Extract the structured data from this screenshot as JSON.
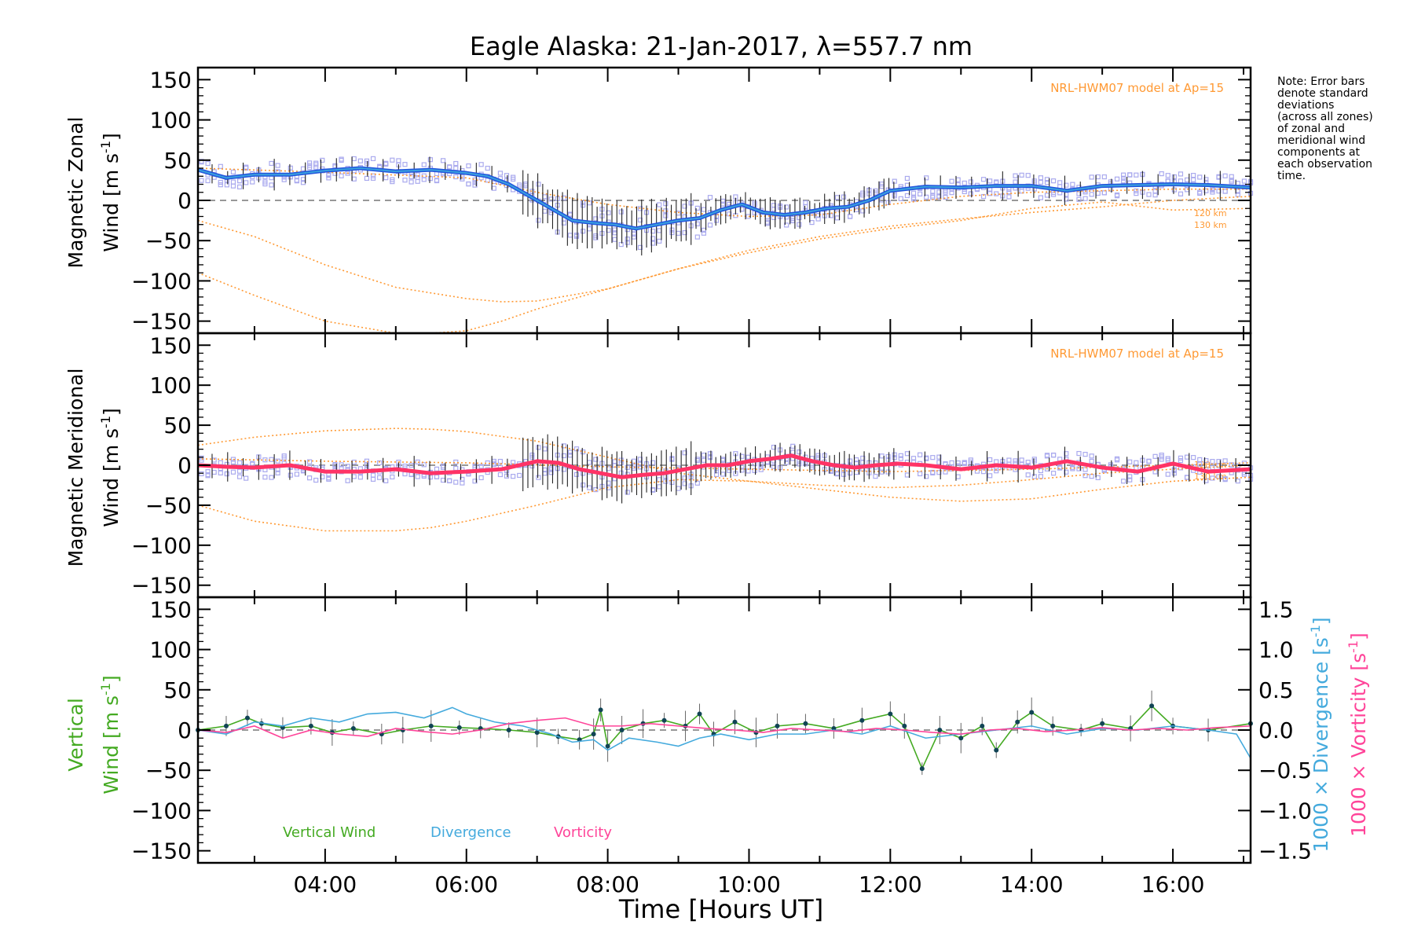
{
  "chart_data": {
    "title": "Eagle Alaska: 21-Jan-2017, λ=557.7 nm",
    "note": [
      "Note: Error bars",
      "denote standard",
      "deviations",
      "(across all zones)",
      "of zonal and",
      "meridional wind",
      "components at",
      "each observation",
      "time."
    ],
    "x": {
      "label": "Time [Hours UT]",
      "range": [
        2.2,
        17.1
      ],
      "tick_values": [
        4,
        6,
        8,
        10,
        12,
        14,
        16
      ],
      "tick_labels": [
        "04:00",
        "06:00",
        "08:00",
        "10:00",
        "12:00",
        "14:00",
        "16:00"
      ]
    },
    "colors": {
      "zonal": "#2255dd",
      "zonal_light": "#3aa0dd",
      "meridional": "#ff3366",
      "model": "#ff9933",
      "samples": "#aaaaee",
      "vertical": "#44aa22",
      "divergence": "#44aadd",
      "vorticity": "#ff4499",
      "dashed": "#777777"
    },
    "panels": [
      {
        "type": "line",
        "ylabel_line1": "Magnetic Zonal",
        "ylabel_line2": "Wind [m s",
        "ylabel_sup": "-1",
        "ylabel_end": "]",
        "ylim": [
          -165,
          165
        ],
        "yticks": [
          -150,
          -100,
          -50,
          0,
          50,
          100,
          150
        ],
        "model_label": "NRL-HWM07 model at Ap=15",
        "altitude_labels": [
          "120 km",
          "130 km"
        ],
        "series": [
          {
            "x": [
              2.2,
              2.6,
              3.0,
              3.5,
              4.0,
              4.5,
              5.0,
              5.5,
              6.0,
              6.3,
              6.6,
              6.9,
              7.2,
              7.5,
              7.8,
              8.1,
              8.4,
              8.7,
              9.0,
              9.3,
              9.6,
              9.9,
              10.2,
              10.5,
              10.8,
              11.1,
              11.4,
              11.7,
              12.0,
              12.5,
              13.0,
              13.5,
              14.0,
              14.5,
              15.0,
              15.5,
              16.0,
              16.5,
              17.1
            ],
            "y": [
              38,
              28,
              32,
              32,
              37,
              40,
              36,
              38,
              34,
              30,
              20,
              5,
              -10,
              -25,
              -28,
              -30,
              -35,
              -30,
              -25,
              -22,
              -12,
              -5,
              -15,
              -18,
              -15,
              -10,
              -8,
              0,
              12,
              17,
              16,
              18,
              18,
              12,
              18,
              19,
              20,
              19,
              16
            ]
          }
        ],
        "model": [
          {
            "x": [
              2.2,
              3.0,
              4.0,
              5.0,
              6.0,
              6.5,
              7.0,
              8.0,
              9.0,
              10.0,
              11.0,
              12.0,
              13.0,
              14.0,
              15.0,
              16.0,
              17.1
            ],
            "y": [
              -25,
              -45,
              -80,
              -108,
              -122,
              -126,
              -125,
              -110,
              -85,
              -62,
              -45,
              -32,
              -23,
              -15,
              -8,
              0,
              5
            ]
          },
          {
            "x": [
              2.2,
              3.0,
              4.0,
              5.0,
              5.5,
              6.0,
              6.5,
              7.0,
              8.0,
              9.0,
              10.0,
              11.0,
              12.0,
              13.0,
              14.0,
              15.0,
              16.0,
              17.1
            ],
            "y": [
              -90,
              -118,
              -150,
              -165,
              -165,
              -162,
              -150,
              -135,
              -110,
              -85,
              -65,
              -48,
              -35,
              -25,
              -10,
              -2,
              -12,
              -10
            ]
          },
          {
            "x": [
              2.2,
              4.0,
              6.0,
              7.0,
              8.0,
              9.0,
              10.0,
              11.0,
              12.0,
              13.0,
              14.0,
              15.0,
              16.0,
              17.1
            ],
            "y": [
              40,
              35,
              28,
              10,
              -5,
              -15,
              -20,
              -18,
              -5,
              5,
              10,
              12,
              14,
              14
            ]
          }
        ]
      },
      {
        "type": "line",
        "ylabel_line1": "Magnetic Meridional",
        "ylabel_line2": "Wind [m s",
        "ylabel_sup": "-1",
        "ylabel_end": "]",
        "ylim": [
          -165,
          165
        ],
        "yticks": [
          -150,
          -100,
          -50,
          0,
          50,
          100,
          150
        ],
        "model_label": "NRL-HWM07 model at Ap=15",
        "altitude_labels": [
          "120 km",
          "130 km"
        ],
        "series": [
          {
            "x": [
              2.2,
              2.6,
              3.0,
              3.5,
              4.0,
              4.5,
              5.0,
              5.5,
              6.0,
              6.5,
              7.0,
              7.3,
              7.6,
              7.9,
              8.2,
              8.5,
              8.8,
              9.1,
              9.4,
              9.7,
              10.0,
              10.3,
              10.6,
              10.9,
              11.2,
              11.5,
              11.8,
              12.1,
              12.5,
              13.0,
              13.5,
              14.0,
              14.5,
              15.0,
              15.5,
              16.0,
              16.5,
              17.1
            ],
            "y": [
              0,
              -2,
              -3,
              0,
              -8,
              -8,
              -5,
              -10,
              -8,
              -5,
              5,
              3,
              -5,
              -10,
              -15,
              -12,
              -10,
              -5,
              0,
              0,
              5,
              8,
              12,
              5,
              0,
              -3,
              0,
              2,
              0,
              -5,
              0,
              -3,
              5,
              -3,
              -8,
              2,
              -8,
              -5
            ]
          }
        ],
        "model": [
          {
            "x": [
              2.2,
              3.0,
              4.0,
              5.0,
              5.5,
              6.0,
              7.0,
              8.0,
              9.0,
              10.0,
              11.0,
              12.0,
              13.0,
              14.0,
              15.0,
              16.0,
              17.1
            ],
            "y": [
              -50,
              -70,
              -82,
              -82,
              -78,
              -70,
              -50,
              -28,
              -18,
              -20,
              -30,
              -40,
              -45,
              -42,
              -30,
              -20,
              -15
            ]
          },
          {
            "x": [
              2.2,
              3.0,
              4.0,
              5.0,
              5.5,
              6.0,
              7.0,
              8.0,
              9.0,
              10.0,
              11.0,
              12.0,
              13.0,
              14.0,
              15.0,
              16.0,
              17.1
            ],
            "y": [
              25,
              35,
              43,
              46,
              45,
              42,
              30,
              10,
              -10,
              -20,
              -25,
              -28,
              -25,
              -18,
              -10,
              -5,
              0
            ]
          },
          {
            "x": [
              2.2,
              4.0,
              6.0,
              8.0,
              10.0,
              12.0,
              14.0,
              16.0,
              17.1
            ],
            "y": [
              8,
              5,
              3,
              -2,
              -5,
              -8,
              -5,
              0,
              3
            ]
          }
        ]
      },
      {
        "type": "line",
        "ylabel_line1": "Vertical",
        "ylabel_line2": "Wind [m s",
        "ylabel_sup": "-1",
        "ylabel_end": "]",
        "ylim": [
          -165,
          165
        ],
        "yticks": [
          -150,
          -100,
          -50,
          0,
          50,
          100,
          150
        ],
        "y2lim": [
          -1.65,
          1.65
        ],
        "y2ticks": [
          -1.5,
          -1.0,
          -0.5,
          0.0,
          0.5,
          1.0,
          1.5
        ],
        "y2ticklabels": [
          "−1.5",
          "−1.0",
          "−0.5",
          "0.0",
          "0.5",
          "1.0",
          "1.5"
        ],
        "y2label_div": "1000 × Divergence [s",
        "y2label_vort": "1000 × Vorticity [s",
        "y2label_sup": "-1",
        "y2label_end": "]",
        "legend": [
          "Vertical Wind",
          "Divergence",
          "Vorticity"
        ],
        "series": [
          {
            "name": "Vertical Wind",
            "x": [
              2.2,
              2.6,
              2.9,
              3.1,
              3.4,
              3.8,
              4.1,
              4.4,
              4.8,
              5.1,
              5.5,
              5.9,
              6.2,
              6.6,
              7.0,
              7.3,
              7.6,
              7.8,
              7.9,
              8.0,
              8.2,
              8.5,
              8.8,
              9.1,
              9.3,
              9.5,
              9.8,
              10.1,
              10.4,
              10.8,
              11.2,
              11.6,
              12.0,
              12.2,
              12.45,
              12.7,
              13.0,
              13.3,
              13.5,
              13.8,
              14.0,
              14.3,
              14.7,
              15.0,
              15.4,
              15.7,
              16.0,
              16.5,
              17.1
            ],
            "y": [
              0,
              5,
              15,
              8,
              3,
              5,
              -3,
              2,
              -5,
              0,
              5,
              3,
              2,
              0,
              -3,
              -8,
              -12,
              -5,
              25,
              -20,
              0,
              8,
              12,
              5,
              20,
              -5,
              10,
              -3,
              5,
              8,
              2,
              12,
              20,
              5,
              -48,
              0,
              -10,
              5,
              -25,
              10,
              22,
              5,
              0,
              8,
              2,
              30,
              5,
              0,
              8
            ]
          },
          {
            "name": "Divergence",
            "x": [
              2.2,
              2.6,
              3.0,
              3.4,
              3.8,
              4.2,
              4.6,
              5.0,
              5.4,
              5.8,
              6.0,
              6.4,
              6.8,
              7.2,
              7.5,
              7.8,
              8.0,
              8.3,
              8.7,
              9.0,
              9.3,
              9.6,
              10.0,
              10.4,
              10.8,
              11.2,
              11.6,
              12.0,
              12.5,
              13.0,
              13.5,
              14.0,
              14.5,
              15.0,
              15.5,
              16.0,
              16.5,
              16.9,
              17.1
            ],
            "y": [
              0.0,
              -0.05,
              0.1,
              0.05,
              0.15,
              0.1,
              0.2,
              0.22,
              0.15,
              0.28,
              0.2,
              0.1,
              0.05,
              -0.05,
              -0.15,
              -0.12,
              -0.25,
              -0.1,
              -0.15,
              -0.2,
              -0.1,
              -0.05,
              -0.12,
              -0.05,
              -0.05,
              0.0,
              -0.05,
              0.05,
              -0.1,
              -0.05,
              0.0,
              0.05,
              -0.05,
              0.02,
              0.0,
              0.05,
              0.0,
              -0.05,
              -0.35
            ]
          },
          {
            "name": "Vorticity",
            "x": [
              2.2,
              2.6,
              3.0,
              3.4,
              3.8,
              4.2,
              4.6,
              5.0,
              5.4,
              5.8,
              6.2,
              6.6,
              7.0,
              7.4,
              7.8,
              8.2,
              8.6,
              9.0,
              9.4,
              9.8,
              10.2,
              10.6,
              11.0,
              11.4,
              11.8,
              12.2,
              12.6,
              13.0,
              13.4,
              13.8,
              14.2,
              14.6,
              15.0,
              15.4,
              15.8,
              16.2,
              16.6,
              17.1
            ],
            "y": [
              0.0,
              -0.03,
              0.05,
              -0.1,
              0.0,
              -0.05,
              -0.08,
              0.02,
              -0.02,
              -0.05,
              0.0,
              0.08,
              0.12,
              0.15,
              0.05,
              0.05,
              0.08,
              0.05,
              0.02,
              0.0,
              -0.03,
              0.02,
              0.0,
              -0.02,
              0.02,
              0.0,
              -0.03,
              -0.05,
              0.0,
              0.02,
              -0.02,
              0.0,
              0.03,
              0.0,
              0.02,
              0.0,
              0.03,
              0.05
            ]
          }
        ]
      }
    ]
  }
}
